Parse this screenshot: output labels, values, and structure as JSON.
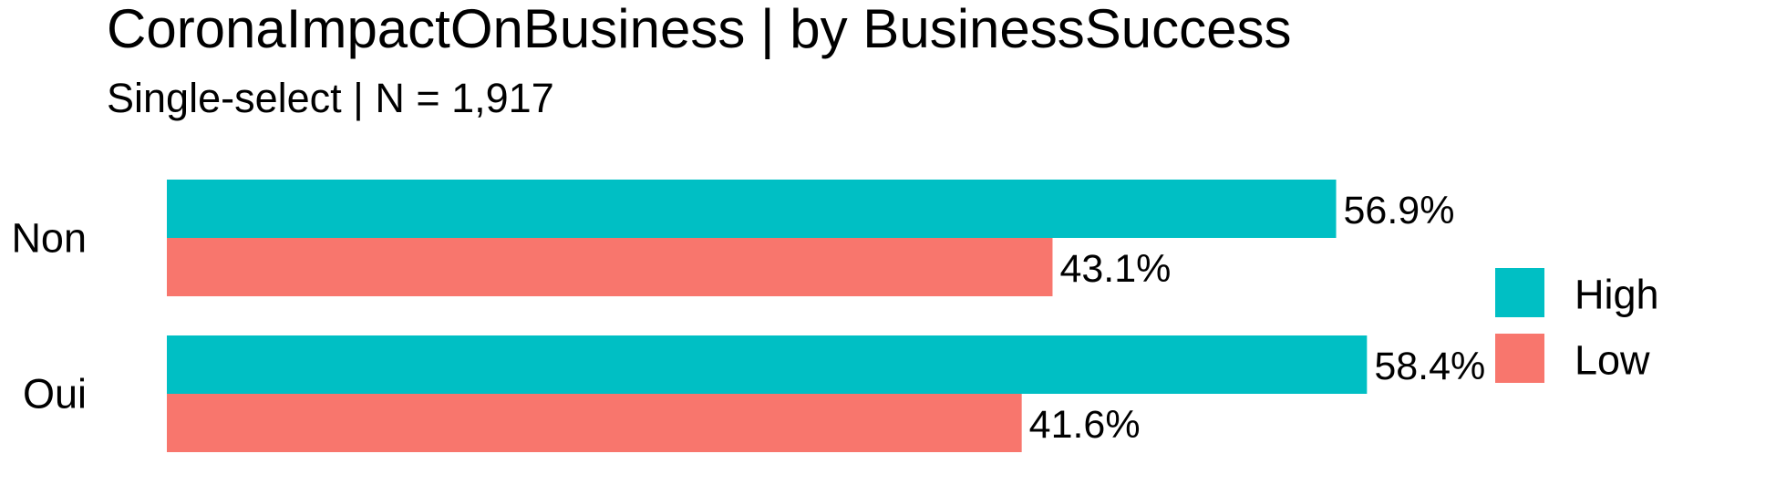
{
  "chart_data": {
    "type": "bar",
    "orientation": "horizontal",
    "title": "CoronaImpactOnBusiness | by BusinessSuccess",
    "subtitle": "Single-select | N = 1,917",
    "categories": [
      "Non",
      "Oui"
    ],
    "series": [
      {
        "name": "High",
        "color": "#00BFC4",
        "values": [
          56.9,
          58.4
        ],
        "labels": [
          "56.9%",
          "58.4%"
        ]
      },
      {
        "name": "Low",
        "color": "#F8766D",
        "values": [
          43.1,
          41.6
        ],
        "labels": [
          "43.1%",
          "41.6%"
        ]
      }
    ],
    "value_unit": "%",
    "xlim": [
      0,
      58.4
    ],
    "grid": false,
    "x_axis_visible": false,
    "legend_position": "right"
  }
}
